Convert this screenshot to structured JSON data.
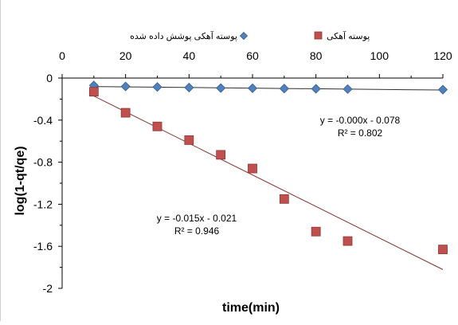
{
  "colors": {
    "series_coated": "#4f81bd",
    "series_coated_edge": "#385d8a",
    "series_uncoated": "#c0504d",
    "series_uncoated_edge": "#8c3836",
    "trendline": "#8b2f2b",
    "trendline_coated": "#2f2f2f",
    "axis": "#000000",
    "text": "#000000",
    "background": "#ffffff"
  },
  "chart_data": {
    "type": "scatter",
    "title": "",
    "xlabel": "time(min)",
    "ylabel": "log(1-qt/qe)",
    "x_axis_position": "top",
    "xlim": [
      0,
      120
    ],
    "ylim": [
      -2,
      0
    ],
    "x_ticks": [
      "0",
      "20",
      "40",
      "60",
      "80",
      "100",
      "120"
    ],
    "y_ticks": [
      "0",
      "-0.4",
      "-0.8",
      "-1.2",
      "-1.6",
      "-2"
    ],
    "grid": false,
    "legend_position": "top",
    "series": [
      {
        "name": "پوسته آهکی پوشش داده شده",
        "marker": "diamond",
        "x": [
          10,
          20,
          30,
          40,
          50,
          60,
          70,
          80,
          90,
          120
        ],
        "y": [
          -0.07,
          -0.08,
          -0.085,
          -0.09,
          -0.095,
          -0.097,
          -0.1,
          -0.102,
          -0.105,
          -0.11
        ],
        "trendline": {
          "slope": -0.0003,
          "intercept": -0.078,
          "x_range": [
            10,
            120
          ]
        }
      },
      {
        "name": "پوسته آهکی",
        "marker": "square",
        "x": [
          10,
          20,
          30,
          40,
          50,
          60,
          70,
          80,
          90,
          120
        ],
        "y": [
          -0.13,
          -0.33,
          -0.46,
          -0.59,
          -0.73,
          -0.86,
          -1.15,
          -1.46,
          -1.55,
          -1.63
        ],
        "trendline": {
          "slope": -0.015,
          "intercept": -0.021,
          "x_range": [
            10,
            120
          ]
        }
      }
    ],
    "annotations": [
      {
        "id": "coated-eq",
        "lines": [
          "y = -0.000x - 0.078",
          "R² = 0.802"
        ]
      },
      {
        "id": "uncoated-eq",
        "lines": [
          "y = -0.015x - 0.021",
          "R² = 0.946"
        ]
      }
    ]
  }
}
